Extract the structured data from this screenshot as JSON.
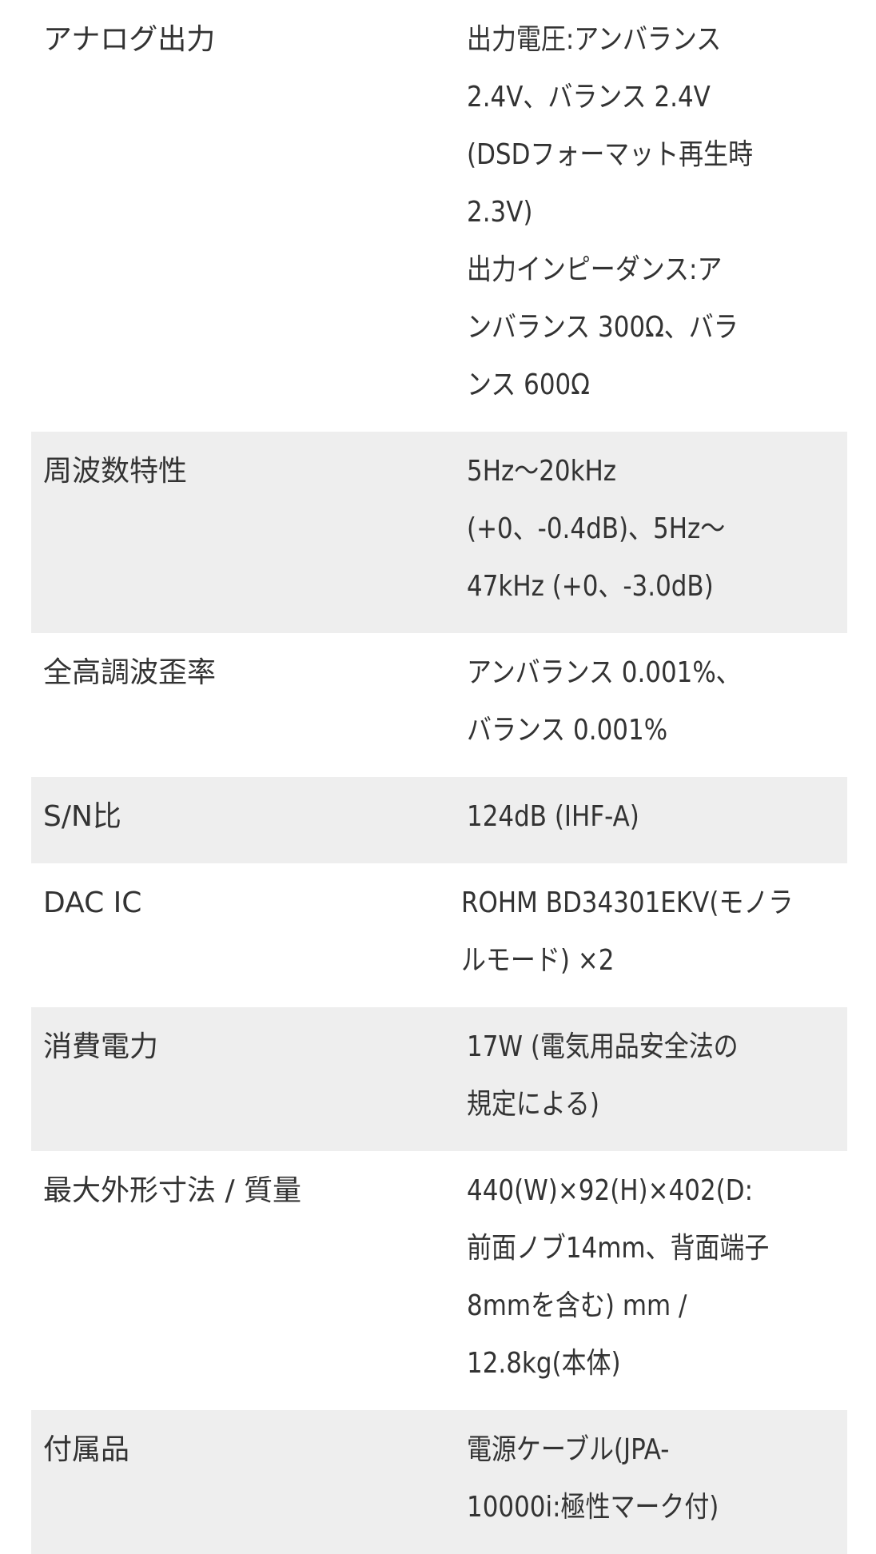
{
  "specs": [
    {
      "label": "アナログ出力",
      "lines": [
        "出力電圧:アンバランス",
        "2.4V、バランス 2.4V",
        "(DSDフォーマット再生時",
        "2.3V)",
        "出力インピーダンス:ア",
        "ンバランス 300Ω、バラ",
        "ンス 600Ω"
      ],
      "shaded": false
    },
    {
      "label": "周波数特性",
      "lines": [
        "5Hz〜20kHz",
        "(+0、-0.4dB)、5Hz〜",
        "47kHz (+0、-3.0dB)"
      ],
      "shaded": true
    },
    {
      "label": "全高調波歪率",
      "lines": [
        "アンバランス 0.001%、",
        "バランス 0.001%"
      ],
      "shaded": false
    },
    {
      "label": "S/N比",
      "lines": [
        "124dB (IHF-A)"
      ],
      "shaded": true
    },
    {
      "label": "DAC IC",
      "lines": [
        "ROHM BD34301EKV(モノラ",
        "ルモード) ×2"
      ],
      "shaded": false
    },
    {
      "label": "消費電力",
      "lines": [
        "17W (電気用品安全法の",
        "規定による)"
      ],
      "shaded": true
    },
    {
      "label": "最大外形寸法 / 質量",
      "lines": [
        "440(W)×92(H)×402(D:",
        "前面ノブ14mm、背面端子",
        "8mmを含む) mm /",
        "12.8kg(本体)"
      ],
      "shaded": false
    },
    {
      "label": "付属品",
      "lines": [
        "電源ケーブル(JPA-",
        "10000i:極性マーク付)"
      ],
      "shaded": true
    }
  ],
  "colors": {
    "shade": "#eeeeee",
    "text": "#333333"
  }
}
